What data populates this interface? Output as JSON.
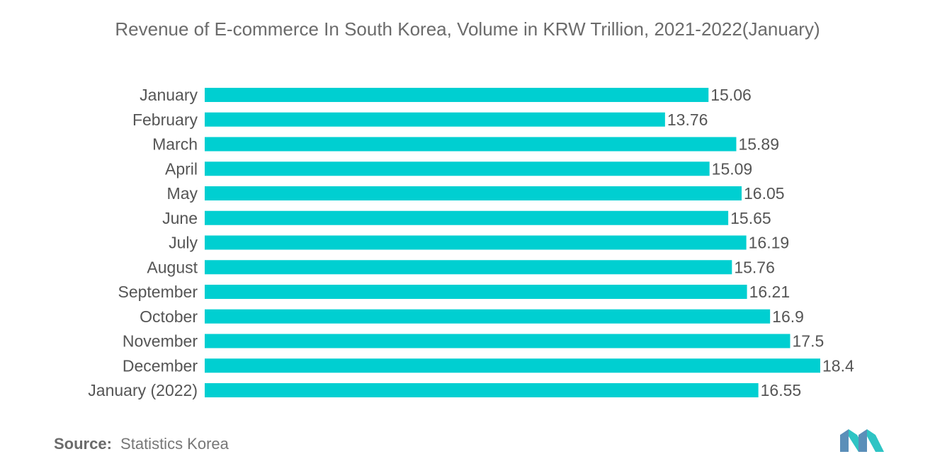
{
  "chart_data": {
    "type": "bar",
    "orientation": "horizontal",
    "title": "Revenue of E-commerce In South Korea, Volume in KRW Trillion, 2021-2022(January)",
    "categories": [
      "January",
      "February",
      "March",
      "April",
      "May",
      "June",
      "July",
      "August",
      "September",
      "October",
      "November",
      "December",
      "January (2022)"
    ],
    "values": [
      15.06,
      13.76,
      15.89,
      15.09,
      16.05,
      15.65,
      16.19,
      15.76,
      16.21,
      16.9,
      17.5,
      18.4,
      16.55
    ],
    "value_labels": [
      "15.06",
      "13.76",
      "15.89",
      "15.09",
      "16.05",
      "15.65",
      "16.19",
      "15.76",
      "16.21",
      "16.9",
      "17.5",
      "18.4",
      "16.55"
    ],
    "xlim": [
      0,
      18.4
    ],
    "grid": false,
    "bar_color": "#00cfd1"
  },
  "source": {
    "label": "Source:",
    "text": "Statistics Korea"
  },
  "logo": {
    "icon": "mordor-intelligence-logo",
    "colors": [
      "#5b8fb9",
      "#2ec4c4"
    ]
  }
}
